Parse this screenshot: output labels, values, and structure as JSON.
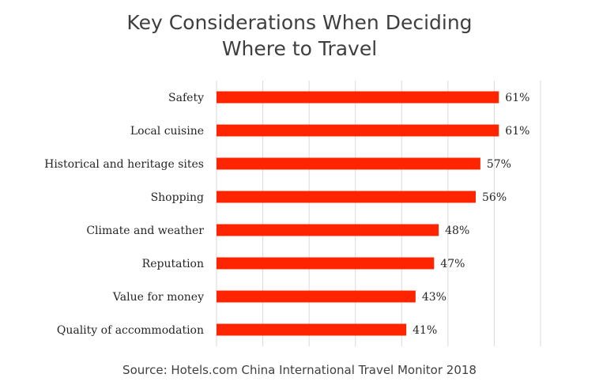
{
  "chart_data": {
    "type": "bar",
    "orientation": "horizontal",
    "title": [
      "Key Considerations When Deciding",
      "Where to Travel"
    ],
    "categories": [
      "Safety",
      "Local cuisine",
      "Historical and heritage sites",
      "Shopping",
      "Climate and weather",
      "Reputation",
      "Value for money",
      "Quality of accommodation"
    ],
    "values": [
      61,
      61,
      57,
      56,
      48,
      47,
      43,
      41
    ],
    "value_labels": [
      "61%",
      "61%",
      "57%",
      "56%",
      "48%",
      "47%",
      "43%",
      "41%"
    ],
    "xlim": [
      0,
      70
    ],
    "grid": true,
    "bar_color": "#ff2400",
    "source": "Source: Hotels.com China International Travel Monitor 2018"
  }
}
